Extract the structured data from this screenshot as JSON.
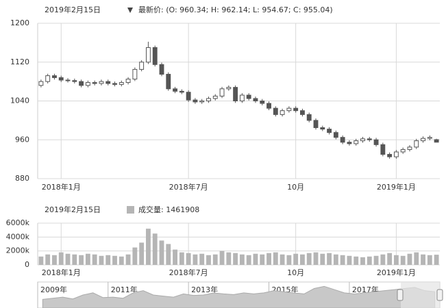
{
  "chart_data": [
    {
      "type": "candlestick",
      "date_label": "2019年2月15日",
      "legend_label": "最新价: (O: 960.34; H: 962.14; L: 954.67; C: 955.04)",
      "color": "#555555",
      "categories": [
        null,
        null,
        null,
        "2018年1月",
        null,
        null,
        null,
        null,
        null,
        null,
        null,
        null,
        null,
        null,
        null,
        null,
        null,
        null,
        null,
        null,
        null,
        null,
        "2018年7月",
        null,
        null,
        null,
        null,
        null,
        null,
        null,
        null,
        null,
        null,
        null,
        null,
        null,
        null,
        null,
        "10月",
        null,
        null,
        null,
        null,
        null,
        null,
        null,
        null,
        null,
        null,
        null,
        null,
        null,
        null,
        "2019年1月",
        null,
        null,
        null,
        null,
        null,
        null
      ],
      "open": [
        1072,
        1080,
        1092,
        1088,
        1083,
        1082,
        1080,
        1072,
        1078,
        1076,
        1080,
        1076,
        1074,
        1078,
        1085,
        1105,
        1120,
        1150,
        1115,
        1095,
        1065,
        1060,
        1058,
        1042,
        1038,
        1040,
        1045,
        1050,
        1065,
        1068,
        1040,
        1052,
        1045,
        1040,
        1035,
        1025,
        1012,
        1020,
        1025,
        1020,
        1012,
        1000,
        985,
        982,
        975,
        965,
        955,
        952,
        958,
        962,
        960,
        950,
        930,
        925,
        935,
        940,
        945,
        958,
        963,
        960.34
      ],
      "high": [
        1084,
        1096,
        1096,
        1092,
        1087,
        1086,
        1084,
        1082,
        1082,
        1084,
        1084,
        1080,
        1082,
        1089,
        1109,
        1124,
        1162,
        1154,
        1119,
        1099,
        1069,
        1064,
        1062,
        1046,
        1044,
        1049,
        1054,
        1069,
        1072,
        1072,
        1056,
        1056,
        1049,
        1044,
        1039,
        1029,
        1024,
        1029,
        1029,
        1024,
        1016,
        1004,
        989,
        986,
        979,
        969,
        959,
        962,
        966,
        966,
        964,
        954,
        934,
        939,
        944,
        949,
        962,
        967,
        969,
        962.14
      ],
      "low": [
        1068,
        1076,
        1084,
        1079,
        1078,
        1076,
        1068,
        1068,
        1072,
        1072,
        1072,
        1070,
        1070,
        1074,
        1081,
        1101,
        1116,
        1111,
        1091,
        1061,
        1056,
        1054,
        1038,
        1034,
        1034,
        1036,
        1041,
        1046,
        1061,
        1036,
        1036,
        1041,
        1036,
        1031,
        1021,
        1008,
        1008,
        1016,
        1016,
        1008,
        996,
        981,
        978,
        971,
        961,
        951,
        948,
        948,
        954,
        956,
        946,
        926,
        921,
        921,
        931,
        936,
        941,
        954,
        959,
        954.67
      ],
      "close": [
        1080,
        1092,
        1088,
        1083,
        1082,
        1080,
        1072,
        1078,
        1076,
        1080,
        1076,
        1074,
        1078,
        1085,
        1105,
        1120,
        1150,
        1115,
        1095,
        1065,
        1060,
        1058,
        1042,
        1038,
        1040,
        1045,
        1050,
        1065,
        1068,
        1040,
        1052,
        1045,
        1040,
        1035,
        1025,
        1012,
        1020,
        1025,
        1020,
        1012,
        1000,
        985,
        982,
        975,
        965,
        955,
        952,
        958,
        962,
        960,
        950,
        930,
        925,
        935,
        940,
        945,
        958,
        963,
        965,
        955.04
      ],
      "ylim": [
        880,
        1200
      ],
      "yticks": [
        880,
        960,
        1040,
        1120,
        1200
      ],
      "grid": true
    },
    {
      "type": "bar",
      "date_label": "2019年2月15日",
      "categories": [
        null,
        null,
        null,
        "2018年1月",
        null,
        null,
        null,
        null,
        null,
        null,
        null,
        null,
        null,
        null,
        null,
        null,
        null,
        null,
        null,
        null,
        null,
        null,
        "2018年7月",
        null,
        null,
        null,
        null,
        null,
        null,
        null,
        null,
        null,
        null,
        null,
        null,
        null,
        null,
        null,
        "10月",
        null,
        null,
        null,
        null,
        null,
        null,
        null,
        null,
        null,
        null,
        null,
        null,
        null,
        null,
        "2019年1月",
        null,
        null,
        null,
        null,
        null,
        null
      ],
      "series": [
        {
          "name": "成交量: 1461908",
          "color": "#b5b5b5",
          "values": [
            1200000,
            1500000,
            1400000,
            1800000,
            1600000,
            1500000,
            1400000,
            1600000,
            1500000,
            1300000,
            1400000,
            1300000,
            1200000,
            1500000,
            2500000,
            3200000,
            5200000,
            4500000,
            3500000,
            3000000,
            2200000,
            1800000,
            1700000,
            1500000,
            1600000,
            1400000,
            1500000,
            2000000,
            1800000,
            1700000,
            1500000,
            1400000,
            1600000,
            1500000,
            1700000,
            1800000,
            1500000,
            1400000,
            1600000,
            1500000,
            1700000,
            1800000,
            1600000,
            1700000,
            1500000,
            1400000,
            1300000,
            1200000,
            1100000,
            1200000,
            1300000,
            1500000,
            1700000,
            1400000,
            1300000,
            1600000,
            1800000,
            1500000,
            1400000,
            1461908
          ]
        }
      ],
      "ylim": [
        0,
        6000000
      ],
      "yticks": [
        0,
        {
          "value": 2000000,
          "label": "2000k"
        },
        {
          "value": 4000000,
          "label": "4000k"
        },
        {
          "value": 6000000,
          "label": "6000k"
        }
      ],
      "grid": true
    },
    {
      "type": "area",
      "color": "#c8c8c8",
      "categories": [
        "2009年",
        null,
        null,
        null,
        null,
        null,
        null,
        "2011年",
        null,
        null,
        null,
        null,
        null,
        null,
        null,
        "2013年",
        null,
        null,
        null,
        null,
        null,
        null,
        null,
        "2015年",
        null,
        null,
        null,
        null,
        null,
        null,
        null,
        "2017年",
        null,
        null,
        null,
        null,
        null,
        null,
        null,
        null
      ],
      "values": [
        400,
        450,
        500,
        420,
        600,
        700,
        480,
        500,
        450,
        700,
        800,
        600,
        550,
        500,
        650,
        580,
        600,
        700,
        650,
        620,
        700,
        650,
        700,
        800,
        750,
        700,
        650,
        900,
        1000,
        850,
        700,
        650,
        700,
        750,
        800,
        850,
        900,
        950,
        800,
        750
      ],
      "ylim": [
        0,
        1200
      ]
    }
  ]
}
